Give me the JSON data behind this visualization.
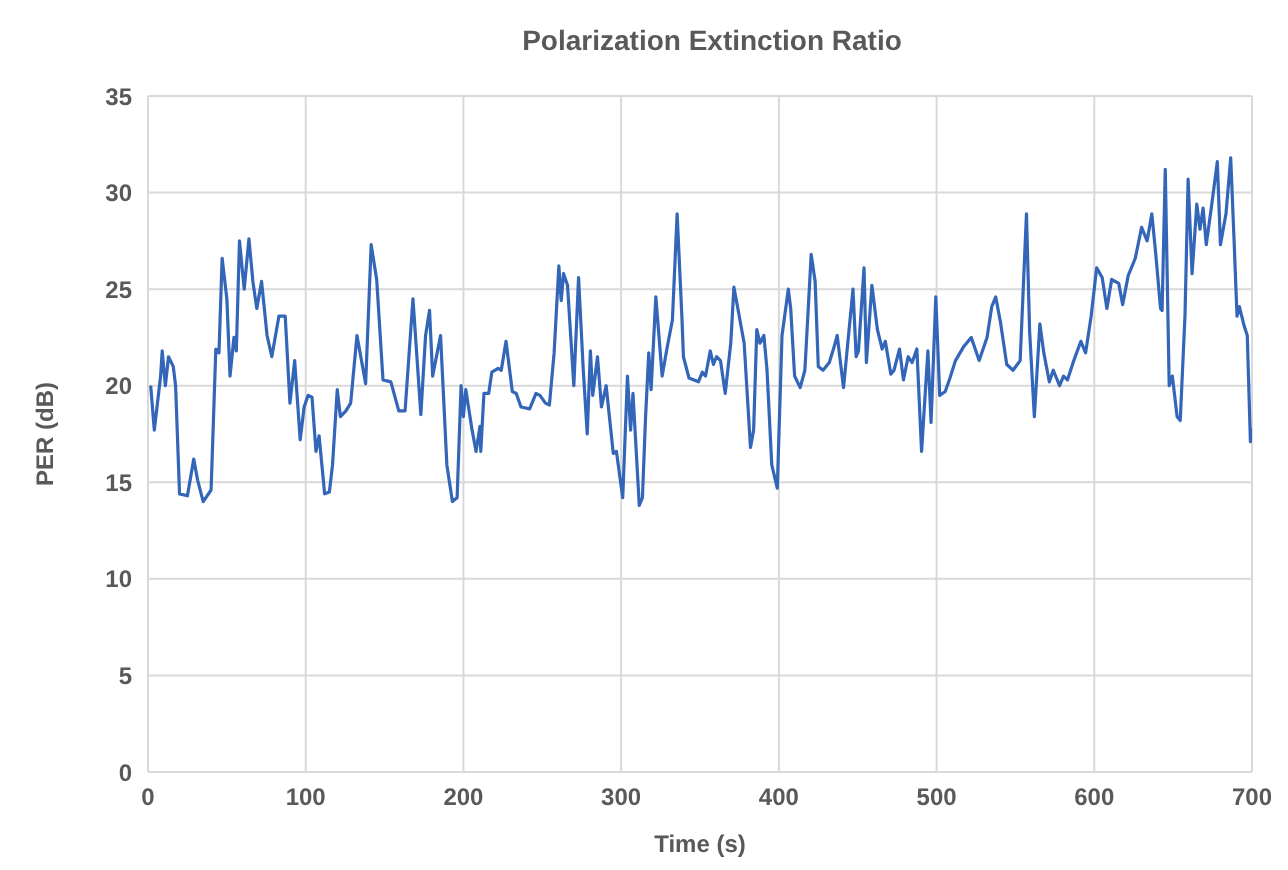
{
  "chart_data": {
    "type": "line",
    "title": "Polarization Extinction Ratio",
    "xlabel": "Time (s)",
    "ylabel": "PER (dB)",
    "xlim": [
      0,
      700
    ],
    "xticks": [
      0,
      100,
      200,
      300,
      400,
      500,
      600,
      700
    ],
    "ylim": [
      0,
      35
    ],
    "yticks": [
      0,
      5,
      10,
      15,
      20,
      25,
      30,
      35
    ],
    "grid": true,
    "marker": "none",
    "line_style": "solid",
    "series": [
      {
        "color": "#3366b8",
        "x": [
          1.7,
          4,
          8,
          9,
          11,
          13,
          16,
          17.5,
          20,
          25,
          29,
          31.5,
          35,
          40,
          43,
          45,
          47,
          50,
          52,
          54.5,
          56,
          58,
          61,
          64,
          66.5,
          69,
          72,
          75.5,
          78.5,
          83,
          87,
          90,
          93,
          96.5,
          99,
          101.5,
          104,
          106.5,
          108.5,
          112,
          115,
          117,
          120,
          122,
          125.5,
          128.5,
          132.5,
          138,
          141.5,
          145,
          149,
          154,
          159,
          163,
          168,
          173,
          176,
          178.5,
          180.5,
          185.5,
          189.5,
          193,
          196,
          198.5,
          200,
          201.5,
          205.5,
          208,
          210.5,
          211,
          213,
          216,
          218,
          222,
          224,
          227,
          231,
          233.5,
          236.5,
          242,
          246,
          248.5,
          252,
          254.5,
          257.5,
          260.5,
          262,
          263.5,
          266,
          270,
          273,
          276,
          278.5,
          280.5,
          282,
          285,
          287.5,
          290.5,
          295,
          297,
          301,
          304,
          306,
          307.5,
          311.5,
          313.5,
          315.5,
          317.5,
          319,
          322,
          326,
          329,
          332.5,
          335.5,
          338.5,
          339.5,
          343,
          349,
          351.5,
          353.5,
          356.5,
          358.5,
          360.5,
          363,
          366,
          369.5,
          371.5,
          374,
          378,
          382,
          384,
          386,
          388,
          390.5,
          392.5,
          395.5,
          399,
          402,
          406,
          407.5,
          410,
          413.5,
          416.5,
          420.5,
          423,
          425,
          428,
          432,
          435,
          437,
          441,
          447,
          449,
          450.5,
          454,
          455.5,
          459,
          462.5,
          465.5,
          467.5,
          471,
          473,
          476.5,
          479,
          482,
          484.5,
          487.5,
          490.5,
          494.5,
          496.5,
          499.5,
          502,
          505.5,
          508.5,
          512,
          517,
          522,
          527,
          532,
          535,
          537.5,
          540.5,
          544.5,
          548.5,
          553,
          557,
          559,
          562,
          565.5,
          568,
          571.5,
          574,
          578,
          580.5,
          583,
          587,
          591.5,
          594.5,
          598,
          601.5,
          605,
          608,
          611,
          615.5,
          618,
          621.5,
          626,
          630,
          633.5,
          636.5,
          639,
          642,
          643,
          645,
          647.5,
          649.5,
          652.5,
          654.5,
          657.5,
          659.5,
          662,
          665,
          667,
          669,
          671,
          674.5,
          678,
          680,
          683.5,
          686.5,
          688.5,
          690.5,
          692,
          695,
          697,
          699,
          700
        ],
        "values": [
          20,
          17.7,
          20.5,
          21.8,
          20,
          21.5,
          21,
          20,
          14.4,
          14.3,
          16.2,
          15.1,
          14,
          14.6,
          21.9,
          21.7,
          26.6,
          24.5,
          20.5,
          22.5,
          21.8,
          27.5,
          25,
          27.6,
          25.4,
          24,
          25.4,
          22.6,
          21.5,
          23.6,
          23.6,
          19.1,
          21.3,
          17.2,
          18.9,
          19.5,
          19.4,
          16.6,
          17.4,
          14.4,
          14.5,
          15.9,
          19.8,
          18.4,
          18.7,
          19.1,
          22.6,
          20.1,
          27.3,
          25.5,
          20.3,
          20.2,
          18.7,
          18.7,
          24.5,
          18.5,
          22.6,
          23.9,
          20.5,
          22.6,
          15.9,
          14,
          14.2,
          20,
          18.4,
          19.8,
          17.7,
          16.6,
          17.9,
          16.6,
          19.6,
          19.6,
          20.7,
          20.9,
          20.8,
          22.3,
          19.7,
          19.6,
          18.9,
          18.8,
          19.6,
          19.5,
          19.1,
          19,
          21.7,
          26.2,
          24.4,
          25.8,
          25.2,
          20,
          25.6,
          20.8,
          17.5,
          21.8,
          19.5,
          21.5,
          18.9,
          20,
          16.5,
          16.6,
          14.2,
          20.5,
          17.7,
          19.6,
          13.8,
          14.2,
          18.4,
          21.7,
          19.8,
          24.6,
          20.5,
          21.9,
          23.4,
          28.9,
          23.6,
          21.5,
          20.4,
          20.2,
          20.7,
          20.5,
          21.8,
          21.1,
          21.5,
          21.3,
          19.6,
          22.2,
          25.1,
          24,
          22.2,
          16.8,
          17.7,
          22.9,
          22.2,
          22.6,
          20.8,
          15.9,
          14.7,
          22.6,
          25,
          24,
          20.5,
          19.9,
          20.8,
          26.8,
          25.4,
          21,
          20.8,
          21.2,
          22,
          22.6,
          19.9,
          25,
          21.5,
          21.8,
          26.1,
          21.2,
          25.2,
          22.9,
          21.9,
          22.3,
          20.6,
          20.8,
          21.9,
          20.3,
          21.5,
          21.2,
          21.9,
          16.6,
          21.8,
          18.1,
          24.6,
          19.5,
          19.7,
          20.4,
          21.3,
          22,
          22.5,
          21.3,
          22.5,
          24.1,
          24.6,
          23.3,
          21.1,
          20.8,
          21.3,
          28.9,
          22.8,
          18.4,
          23.2,
          21.7,
          20.2,
          20.8,
          20,
          20.5,
          20.3,
          21.3,
          22.3,
          21.7,
          23.6,
          26.1,
          25.6,
          24,
          25.5,
          25.3,
          24.2,
          25.7,
          26.6,
          28.2,
          27.5,
          28.9,
          26.8,
          24,
          23.9,
          31.2,
          20,
          20.5,
          18.4,
          18.2,
          23.6,
          30.7,
          25.8,
          29.4,
          28.1,
          29.2,
          27.3,
          29.4,
          31.6,
          27.3,
          28.9,
          31.8,
          27.8,
          23.6,
          24.1,
          23.1,
          22.6,
          17.1,
          17.8
        ]
      }
    ]
  }
}
